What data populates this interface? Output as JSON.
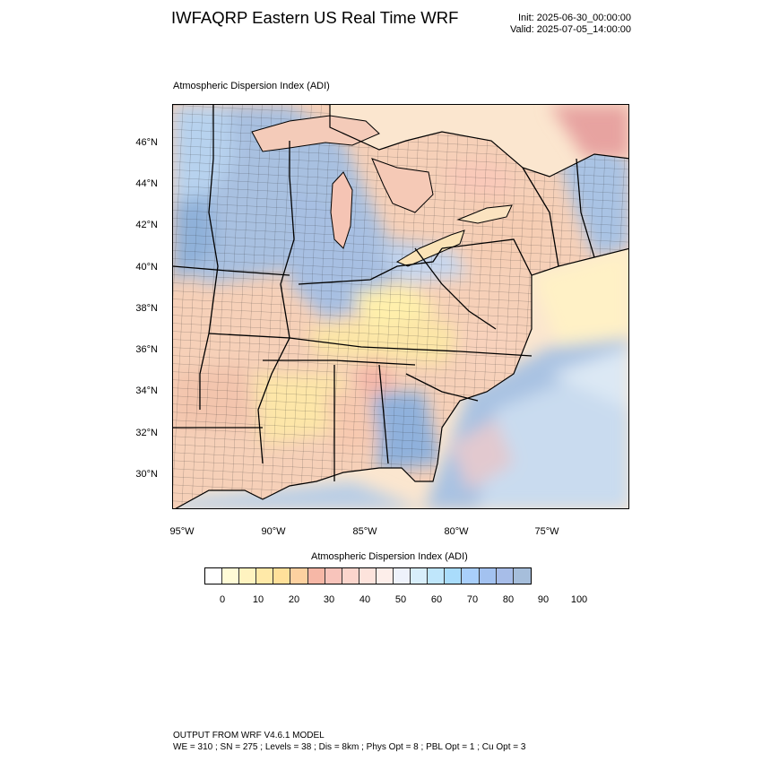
{
  "title": "IWFAQRP Eastern US Real Time WRF",
  "init_text": "Init: 2025-06-30_00:00:00",
  "valid_text": "Valid: 2025-07-05_14:00:00",
  "map": {
    "subtitle": "Atmospheric Dispersion Index   (ADI)",
    "lat_labels": [
      "46°N",
      "44°N",
      "42°N",
      "40°N",
      "38°N",
      "36°N",
      "34°N",
      "32°N",
      "30°N"
    ],
    "lon_labels": [
      "95°W",
      "90°W",
      "85°W",
      "80°W",
      "75°W"
    ]
  },
  "legend": {
    "title": "Atmospheric Dispersion Index  (ADI)",
    "colors": [
      "#ffffff",
      "#fffbd6",
      "#fff3c0",
      "#ffe9a8",
      "#ffe09a",
      "#fdd1a0",
      "#f6b7a6",
      "#f8c4bb",
      "#fbd5cc",
      "#fde3dc",
      "#fdeeea",
      "#eef2fb",
      "#d8eefb",
      "#bfe6fb",
      "#a9dcfb",
      "#a9cffb",
      "#a3c2f0",
      "#a7bde8",
      "#a6bedb"
    ],
    "tick_labels": [
      "0",
      "10",
      "20",
      "30",
      "40",
      "50",
      "60",
      "70",
      "80",
      "90",
      "100"
    ]
  },
  "footer": {
    "line1": "OUTPUT FROM WRF V4.6.1 MODEL",
    "line2": "WE = 310 ; SN = 275 ; Levels = 38 ; Dis = 8km ; Phys Opt = 8 ; PBL Opt = 1 ; Cu Opt = 3"
  }
}
